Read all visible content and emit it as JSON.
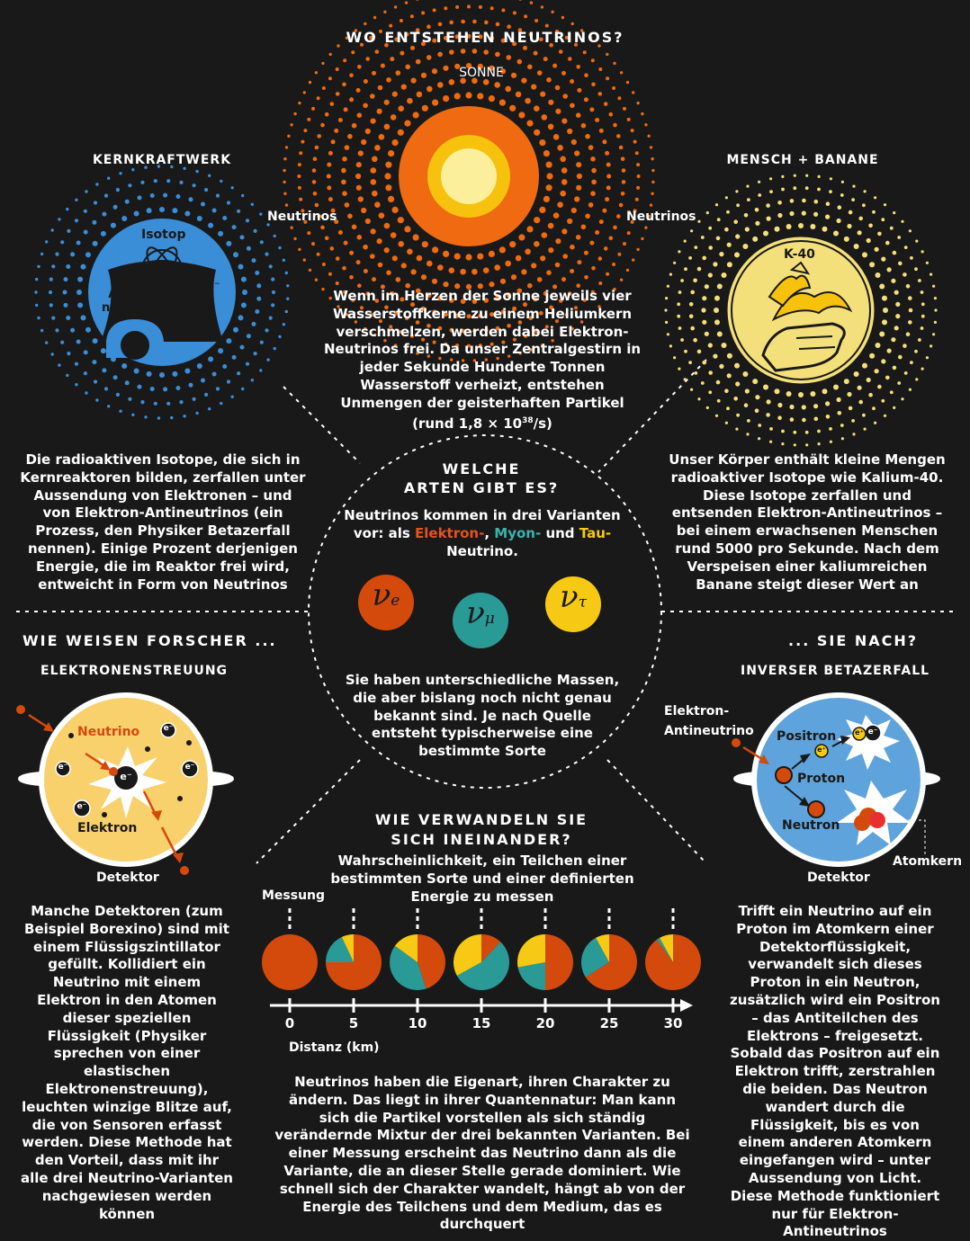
{
  "colors": {
    "background": "#1a1919",
    "electron": "#d44a0c",
    "muon": "#2a9a96",
    "tau": "#f6c915",
    "detector_yellow": "#f8d06c",
    "detector_blue": "#5ea3db",
    "reactor_blue": "#3a8ed8",
    "banana_yellow": "#f4e07a",
    "sun_orange": "#ef6a10"
  },
  "top": {
    "title": "WO ENTSTEHEN NEUTRINOS?",
    "sun_label": "SONNE",
    "neutrinos_left": "Neutrinos",
    "neutrinos_right": "Neutrinos",
    "sun_text": "Wenn im Herzen der Sonne jeweils vier Wasserstoffkerne zu einem Heliumkern verschmelzen, werden dabei Elektron-Neutrinos frei. Da unser Zentralgestirn in jeder Sekunde Hunderte Tonnen Wasserstoff verheizt, entstehen Unmengen der geisterhaften Partikel (rund 1,8 × 10",
    "sun_text_exp": "38",
    "sun_text_end": "/s)"
  },
  "reactor": {
    "title": "KERNKRAFTWERK",
    "isotope": "Isotop",
    "antineutrino_1": "Anti-",
    "antineutrino_2": "neutrino",
    "electron": "e⁻",
    "text": "Die radioaktiven Isotope, die sich in Kernreaktoren bilden, zerfallen unter Aussendung von Elektronen – und von Elektron-Antineutrinos (ein Prozess, den Physiker Betazerfall nennen). Einige Prozent derjenigen Energie, die im Reaktor frei wird, entweicht in Form von Neutrinos"
  },
  "banana": {
    "title": "MENSCH + BANANE",
    "isotope": "K-40",
    "text": "Unser Körper enthält kleine Mengen radioaktiver Isotope wie Kalium-40. Diese Isotope zerfallen und entsenden Elektron-Antineutrinos – bei einem erwachsenen Menschen rund 5000 pro Sekunde. Nach dem Verspeisen einer kaliumreichen Banane steigt dieser Wert an"
  },
  "center": {
    "title_1": "WELCHE",
    "title_2": "ARTEN GIBT ES?",
    "intro_1": "Neutrinos kommen in drei Varianten",
    "intro_2": "vor: als",
    "electron": "Elektron-",
    "comma": ",",
    "muon": "Myon-",
    "and": "und",
    "tau": "Tau-",
    "intro_3": "Neutrino.",
    "symbol_nu": "ν",
    "symbol_e": "e",
    "symbol_mu": "μ",
    "symbol_tau": "τ",
    "text_2": "Sie haben unterschiedliche Massen, die aber bislang noch nicht genau bekannt sind. Je nach Quelle entsteht typischerweise eine bestimmte Sorte"
  },
  "detect": {
    "title_left": "WIE WEISEN FORSCHER ...",
    "title_right": "... SIE NACH?"
  },
  "scatter": {
    "title": "ELEKTRONENSTREUUNG",
    "neutrino": "Neutrino",
    "electron_label": "Elektron",
    "e": "e⁻",
    "detector": "Detektor",
    "text": "Manche Detektoren (zum Beispiel Borexino) sind mit einem Flüssigszintillator gefüllt. Kollidiert ein Neutrino mit einem Elektron in den Atomen dieser speziellen Flüssigkeit (Physiker sprechen von einer elastischen Elektronenstreuung), leuchten winzige Blitze auf, die von Sensoren erfasst werden. Diese Methode hat den Vorteil, dass mit ihr alle drei Neutrino-Varianten nachgewiesen werden können"
  },
  "ibd": {
    "title": "INVERSER BETAZERFALL",
    "antineutrino_1": "Elektron-",
    "antineutrino_2": "Antineutrino",
    "positron": "Positron",
    "eplus": "e⁺",
    "eminus": "e⁻",
    "proton": "Proton",
    "neutron": "Neutron",
    "nucleus": "Atomkern",
    "detector": "Detektor",
    "text": "Trifft ein Neutrino auf ein Proton im Atomkern einer Detektorflüssigkeit, verwandelt sich dieses Proton in ein Neutron, zusätzlich wird ein Positron – das Antiteilchen des Elektrons – freigesetzt. Sobald das Positron auf ein Elektron trifft, zerstrahlen die beiden. Das Neutron wandert durch die Flüssigkeit, bis es von einem anderen Atomkern eingefangen wird – unter Aussendung von Licht. Diese Methode funktioniert nur für Elektron-Antineutrinos"
  },
  "osc": {
    "title_1": "WIE VERWANDELN SIE",
    "title_2": "SICH INEINANDER?",
    "subtitle": "Wahrscheinlichkeit, ein Teilchen einer bestimmten Sorte und einer definierten Energie zu messen",
    "measure": "Messung",
    "xlabel": "Distanz (km)",
    "text": "Neutrinos haben die Eigenart, ihren Charakter zu ändern. Das liegt in ihrer Quantennatur: Man kann sich die Partikel vorstellen als sich ständig verändernde Mixtur der drei bekannten Varianten. Bei einer Messung erscheint das Neutrino dann als die Variante, die an dieser Stelle gerade dominiert. Wie schnell sich der Charakter wandelt, hängt ab von der Energie des Teilchens und dem Medium, das es durchquert"
  },
  "chart_data": {
    "type": "pie",
    "title": "",
    "xlabel": "Distanz (km)",
    "x": [
      0,
      5,
      10,
      15,
      20,
      25,
      30
    ],
    "series": [
      {
        "name": "Elektron-",
        "color": "#d44a0c",
        "values": [
          1.0,
          0.75,
          0.45,
          0.12,
          0.5,
          0.66,
          0.9
        ]
      },
      {
        "name": "Myon-",
        "color": "#2a9a96",
        "values": [
          0.0,
          0.18,
          0.4,
          0.55,
          0.22,
          0.26,
          0.02
        ]
      },
      {
        "name": "Tau-",
        "color": "#f6c915",
        "values": [
          0.0,
          0.07,
          0.15,
          0.33,
          0.28,
          0.08,
          0.08
        ]
      }
    ]
  }
}
